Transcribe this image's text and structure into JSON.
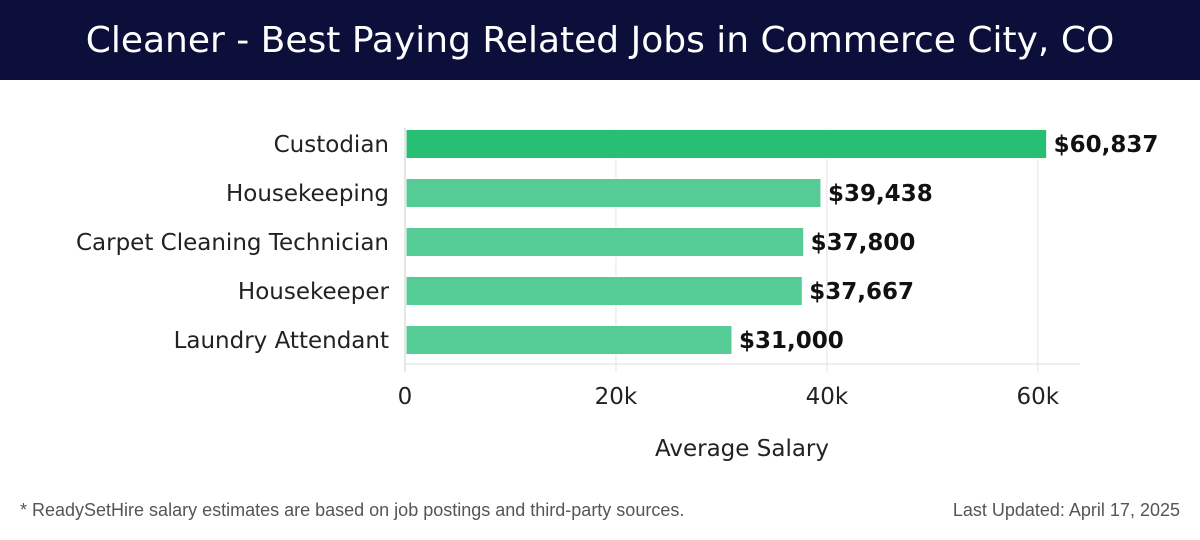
{
  "header": {
    "title": "Cleaner - Best Paying Related Jobs in Commerce City, CO"
  },
  "colors": {
    "header_bg": "#0c0f3a",
    "top_bar": "#27bf73",
    "bar": "#55cc95"
  },
  "chart_data": {
    "type": "bar",
    "orientation": "horizontal",
    "categories": [
      "Custodian",
      "Housekeeping",
      "Carpet Cleaning Technician",
      "Housekeeper",
      "Laundry Attendant"
    ],
    "values": [
      60837,
      39438,
      37800,
      37667,
      31000
    ],
    "value_labels": [
      "$60,837",
      "$39,438",
      "$37,800",
      "$37,667",
      "$31,000"
    ],
    "xlabel": "Average Salary",
    "ylabel": "",
    "xlim": [
      0,
      64000
    ],
    "xticks": [
      0,
      20000,
      40000,
      60000
    ],
    "xtick_labels": [
      "0",
      "20k",
      "40k",
      "60k"
    ],
    "grid": true
  },
  "footer": {
    "note": "* ReadySetHire salary estimates are based on job postings and third-party sources.",
    "updated": "Last Updated: April 17, 2025"
  }
}
